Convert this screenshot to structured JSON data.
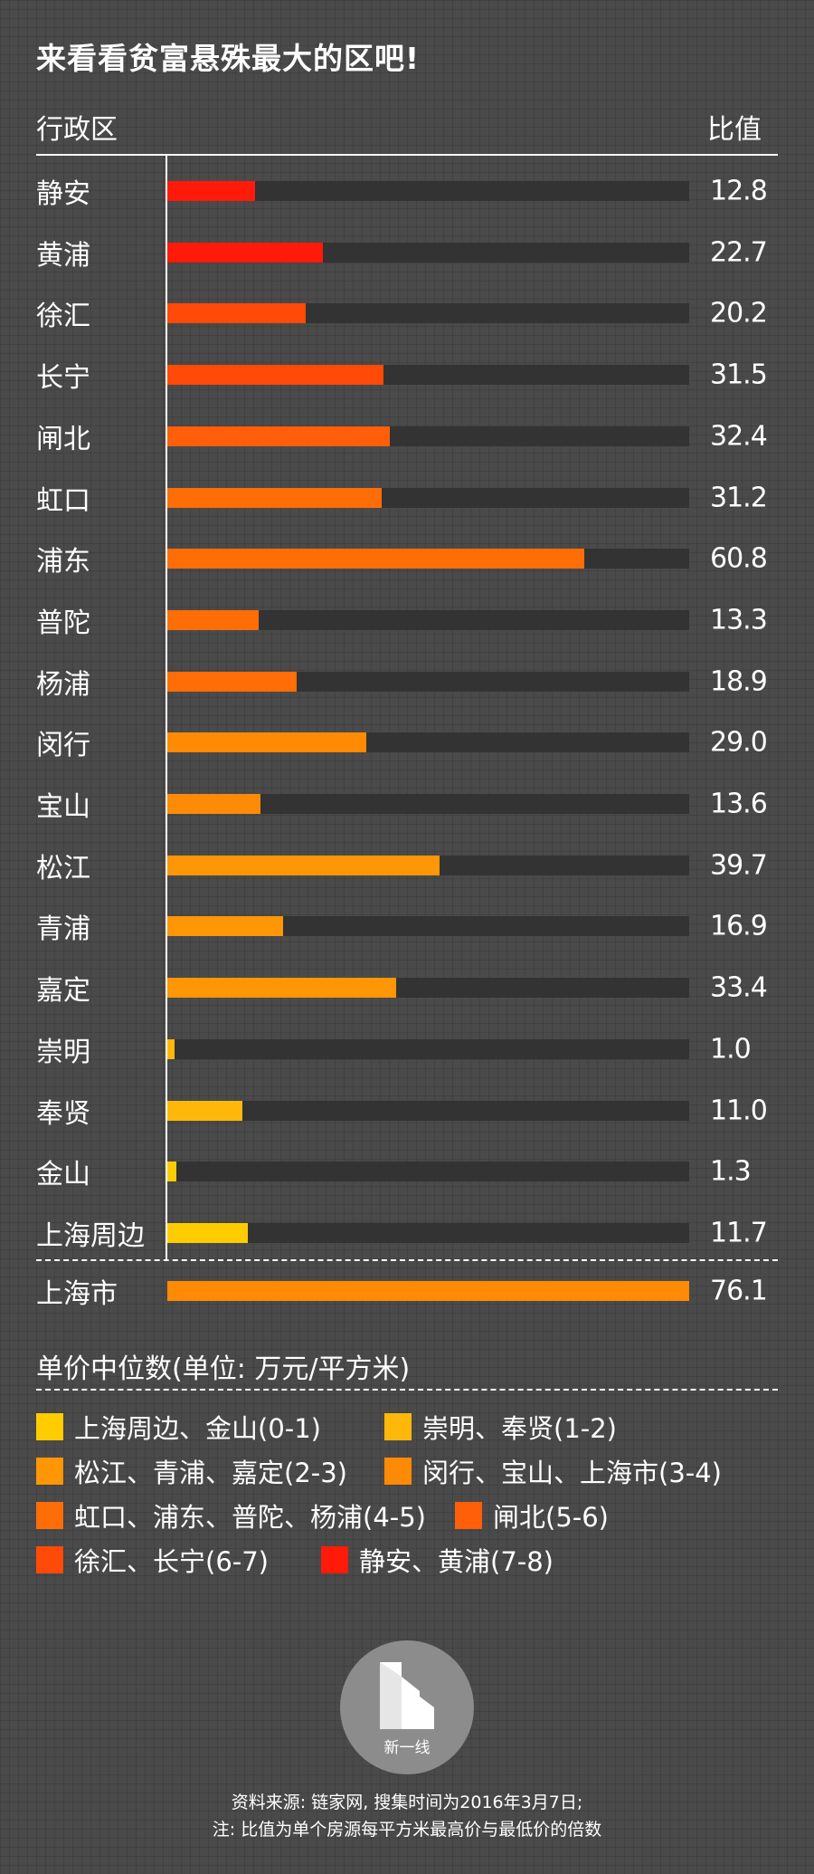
{
  "title": "来看看贫富悬殊最大的区吧!",
  "header": {
    "left_label": "行政区",
    "right_label": "比值"
  },
  "chart_data": {
    "type": "bar",
    "orientation": "horizontal",
    "xlim": [
      0,
      76.1
    ],
    "categories": [
      "静安",
      "黄浦",
      "徐汇",
      "长宁",
      "闸北",
      "虹口",
      "浦东",
      "普陀",
      "杨浦",
      "闵行",
      "宝山",
      "松江",
      "青浦",
      "嘉定",
      "崇明",
      "奉贤",
      "金山",
      "上海周边",
      "上海市"
    ],
    "values": [
      12.8,
      22.7,
      20.2,
      31.5,
      32.4,
      31.2,
      60.8,
      13.3,
      18.9,
      29.0,
      13.6,
      39.7,
      16.9,
      33.4,
      1.0,
      11.0,
      1.3,
      11.7,
      76.1
    ],
    "value_labels": [
      "12.8",
      "22.7",
      "20.2",
      "31.5",
      "32.4",
      "31.2",
      "60.8",
      "13.3",
      "18.9",
      "29.0",
      "13.6",
      "39.7",
      "16.9",
      "33.4",
      "1.0",
      "11.0",
      "1.3",
      "11.7",
      "76.1"
    ],
    "bar_colors": [
      "#ff1a0a",
      "#ff1a0a",
      "#ff4a08",
      "#ff4a08",
      "#ff5f08",
      "#ff6d06",
      "#ff6d06",
      "#ff6d06",
      "#ff6d06",
      "#ff8a05",
      "#ff8a05",
      "#ff9605",
      "#ff9605",
      "#ff9605",
      "#ffb80a",
      "#ffb80a",
      "#ffcc00",
      "#ffcc00",
      "#ff8a05"
    ],
    "track_color": "#333333",
    "grid": false
  },
  "unit_title": "单价中位数(单位: 万元/平方米)",
  "legend": [
    {
      "label": "上海周边、金山(0-1)",
      "color": "#ffcc00"
    },
    {
      "label": "崇明、奉贤(1-2)",
      "color": "#ffb80a"
    },
    {
      "label": "松江、青浦、嘉定(2-3)",
      "color": "#ff9605"
    },
    {
      "label": "闵行、宝山、上海市(3-4)",
      "color": "#ff8a05"
    },
    {
      "label": "虹口、浦东、普陀、杨浦(4-5)",
      "color": "#ff6d06"
    },
    {
      "label": "闸北(5-6)",
      "color": "#ff5f08"
    },
    {
      "label": "徐汇、长宁(6-7)",
      "color": "#ff4a08"
    },
    {
      "label": "静安、黄浦(7-8)",
      "color": "#ff1a0a"
    }
  ],
  "logo": {
    "text": "新一线",
    "icon": "building-logo-icon"
  },
  "footer": {
    "source": "资料来源: 链家网, 搜集时间为2016年3月7日;",
    "note": "注: 比值为单个房源每平方米最高价与最低价的倍数"
  }
}
